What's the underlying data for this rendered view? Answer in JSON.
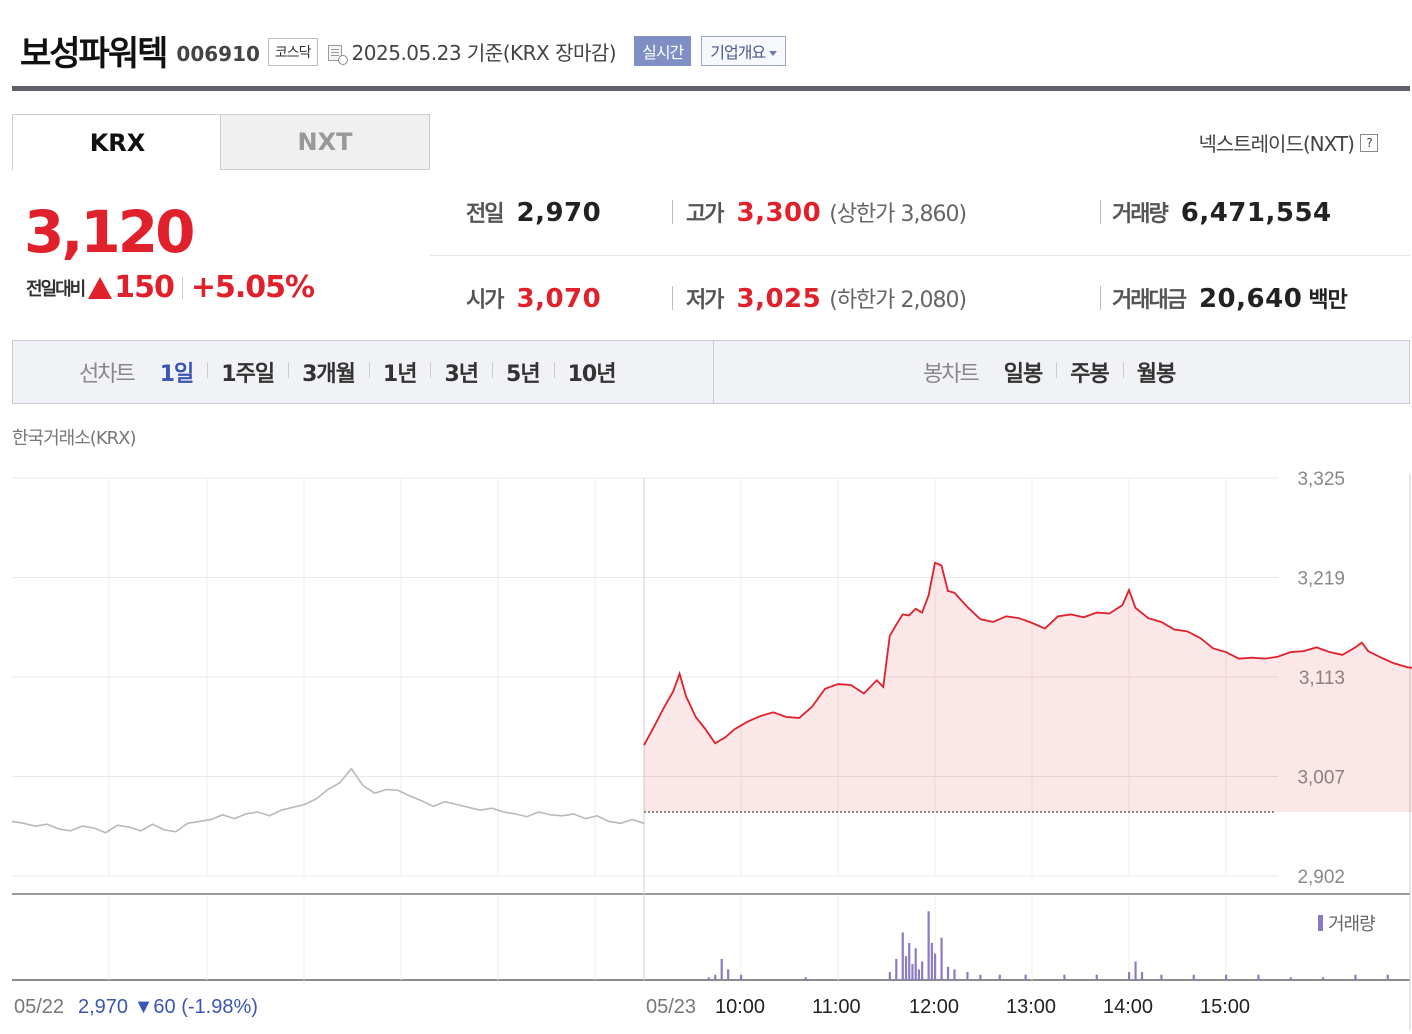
{
  "header": {
    "company_name": "보성파워텍",
    "stock_code": "006910",
    "market": "코스닥",
    "date_text": "2025.05.23  기준(KRX 장마감)",
    "realtime_label": "실시간",
    "corp_info_label": "기업개요"
  },
  "tabs": [
    {
      "label": "KRX",
      "active": true
    },
    {
      "label": "NXT",
      "active": false
    }
  ],
  "nxt_link": {
    "label": "넥스트레이드(NXT)",
    "icon": "help-icon"
  },
  "quote": {
    "price": "3,120",
    "change_label": "전일대비",
    "change_direction": "up",
    "change_value": "150",
    "change_percent": "+5.05%"
  },
  "stats": {
    "prev_close": {
      "label": "전일",
      "value": "2,970"
    },
    "high": {
      "label": "고가",
      "value": "3,300",
      "limit_text": "(상한가 3,860)"
    },
    "volume": {
      "label": "거래량",
      "value": "6,471,554"
    },
    "open": {
      "label": "시가",
      "value": "3,070"
    },
    "low": {
      "label": "저가",
      "value": "3,025",
      "limit_text": "(하한가 2,080)"
    },
    "trade_value": {
      "label": "거래대금",
      "value": "20,640",
      "unit": "백만"
    }
  },
  "period_bar": {
    "line_chart": {
      "title": "선차트",
      "items": [
        "1일",
        "1주일",
        "3개월",
        "1년",
        "3년",
        "5년",
        "10년"
      ],
      "active": "1일"
    },
    "candle_chart": {
      "title": "봉차트",
      "items": [
        "일봉",
        "주봉",
        "월봉"
      ]
    }
  },
  "colors": {
    "up": "#e0202a",
    "down": "#3a56b4",
    "accent": "#7f8fc4",
    "prev_line": "#b9b9b9",
    "volume": "#8c7ac4"
  },
  "chart_data": {
    "type": "line",
    "source_label": "한국거래소(KRX)",
    "y_ticks": [
      "3,325",
      "3,219",
      "3,113",
      "3,007",
      "2,902"
    ],
    "ylim": [
      2902,
      3325
    ],
    "x_labels": [
      "05/22",
      "05/23",
      "10:00",
      "11:00",
      "12:00",
      "13:00",
      "14:00",
      "15:00"
    ],
    "prev_day_summary": {
      "date": "05/22",
      "close": "2,970",
      "change_arrow": "▼",
      "change": "60",
      "percent": "(-1.98%)"
    },
    "baseline": 2970,
    "grid": true,
    "series": [
      {
        "role": "previous-day",
        "points": [
          [
            0,
            2960
          ],
          [
            5,
            2958
          ],
          [
            10,
            2955
          ],
          [
            15,
            2957
          ],
          [
            20,
            2952
          ],
          [
            25,
            2950
          ],
          [
            30,
            2955
          ],
          [
            35,
            2953
          ],
          [
            40,
            2948
          ],
          [
            45,
            2956
          ],
          [
            50,
            2954
          ],
          [
            55,
            2950
          ],
          [
            60,
            2957
          ],
          [
            65,
            2951
          ],
          [
            70,
            2949
          ],
          [
            75,
            2958
          ],
          [
            80,
            2960
          ],
          [
            85,
            2962
          ],
          [
            90,
            2967
          ],
          [
            95,
            2963
          ],
          [
            100,
            2968
          ],
          [
            105,
            2970
          ],
          [
            110,
            2966
          ],
          [
            115,
            2972
          ],
          [
            120,
            2975
          ],
          [
            125,
            2978
          ],
          [
            130,
            2984
          ],
          [
            135,
            2994
          ],
          [
            140,
            3001
          ],
          [
            145,
            3016
          ],
          [
            150,
            2998
          ],
          [
            155,
            2990
          ],
          [
            160,
            2994
          ],
          [
            165,
            2993
          ],
          [
            170,
            2987
          ],
          [
            175,
            2982
          ],
          [
            180,
            2976
          ],
          [
            185,
            2981
          ],
          [
            190,
            2978
          ],
          [
            195,
            2975
          ],
          [
            200,
            2972
          ],
          [
            205,
            2974
          ],
          [
            210,
            2970
          ],
          [
            215,
            2968
          ],
          [
            220,
            2965
          ],
          [
            225,
            2970
          ],
          [
            230,
            2967
          ],
          [
            235,
            2966
          ],
          [
            240,
            2968
          ],
          [
            245,
            2963
          ],
          [
            250,
            2966
          ],
          [
            255,
            2960
          ],
          [
            260,
            2958
          ],
          [
            265,
            2962
          ],
          [
            270,
            2958
          ]
        ]
      },
      {
        "role": "current-day",
        "points": [
          [
            270,
            3041
          ],
          [
            273,
            3060
          ],
          [
            276,
            3080
          ],
          [
            279,
            3098
          ],
          [
            281,
            3117
          ],
          [
            283,
            3093
          ],
          [
            286,
            3071
          ],
          [
            289,
            3058
          ],
          [
            292,
            3043
          ],
          [
            295,
            3049
          ],
          [
            298,
            3058
          ],
          [
            302,
            3066
          ],
          [
            306,
            3072
          ],
          [
            310,
            3076
          ],
          [
            314,
            3071
          ],
          [
            318,
            3070
          ],
          [
            322,
            3082
          ],
          [
            326,
            3101
          ],
          [
            330,
            3106
          ],
          [
            334,
            3105
          ],
          [
            338,
            3096
          ],
          [
            342,
            3110
          ],
          [
            344,
            3103
          ],
          [
            346,
            3157
          ],
          [
            348,
            3169
          ],
          [
            350,
            3180
          ],
          [
            352,
            3179
          ],
          [
            354,
            3186
          ],
          [
            356,
            3182
          ],
          [
            358,
            3200
          ],
          [
            360,
            3235
          ],
          [
            362,
            3232
          ],
          [
            364,
            3205
          ],
          [
            366,
            3203
          ],
          [
            370,
            3188
          ],
          [
            374,
            3175
          ],
          [
            378,
            3172
          ],
          [
            382,
            3178
          ],
          [
            386,
            3176
          ],
          [
            390,
            3171
          ],
          [
            394,
            3165
          ],
          [
            398,
            3178
          ],
          [
            402,
            3180
          ],
          [
            406,
            3177
          ],
          [
            410,
            3182
          ],
          [
            414,
            3181
          ],
          [
            418,
            3190
          ],
          [
            420,
            3206
          ],
          [
            422,
            3187
          ],
          [
            426,
            3176
          ],
          [
            430,
            3172
          ],
          [
            434,
            3164
          ],
          [
            438,
            3162
          ],
          [
            442,
            3155
          ],
          [
            446,
            3144
          ],
          [
            450,
            3140
          ],
          [
            454,
            3133
          ],
          [
            458,
            3134
          ],
          [
            462,
            3133
          ],
          [
            466,
            3135
          ],
          [
            470,
            3140
          ],
          [
            474,
            3141
          ],
          [
            478,
            3145
          ],
          [
            482,
            3140
          ],
          [
            486,
            3137
          ],
          [
            490,
            3145
          ],
          [
            492,
            3150
          ],
          [
            494,
            3141
          ],
          [
            498,
            3134
          ],
          [
            502,
            3128
          ],
          [
            506,
            3124
          ],
          [
            510,
            3122
          ],
          [
            512,
            3115
          ],
          [
            514,
            3118
          ]
        ]
      }
    ],
    "volume_bars": [
      [
        290,
        1
      ],
      [
        292,
        2
      ],
      [
        294,
        8
      ],
      [
        296,
        4
      ],
      [
        300,
        2
      ],
      [
        320,
        1
      ],
      [
        346,
        3
      ],
      [
        348,
        8
      ],
      [
        350,
        18
      ],
      [
        351,
        9
      ],
      [
        352,
        14
      ],
      [
        353,
        6
      ],
      [
        354,
        12
      ],
      [
        355,
        4
      ],
      [
        356,
        7
      ],
      [
        358,
        26
      ],
      [
        359,
        14
      ],
      [
        360,
        10
      ],
      [
        362,
        16
      ],
      [
        364,
        5
      ],
      [
        366,
        4
      ],
      [
        370,
        3
      ],
      [
        374,
        2
      ],
      [
        380,
        2
      ],
      [
        388,
        2
      ],
      [
        400,
        2
      ],
      [
        410,
        2
      ],
      [
        420,
        3
      ],
      [
        422,
        7
      ],
      [
        424,
        3
      ],
      [
        430,
        2
      ],
      [
        440,
        2
      ],
      [
        450,
        2
      ],
      [
        460,
        2
      ],
      [
        470,
        1
      ],
      [
        480,
        1
      ],
      [
        490,
        2
      ],
      [
        500,
        2
      ],
      [
        510,
        1
      ],
      [
        514,
        3
      ]
    ],
    "x_time_domain": "minutes from 05/22 09:00; 270 = 05/23 09:00 session open"
  }
}
